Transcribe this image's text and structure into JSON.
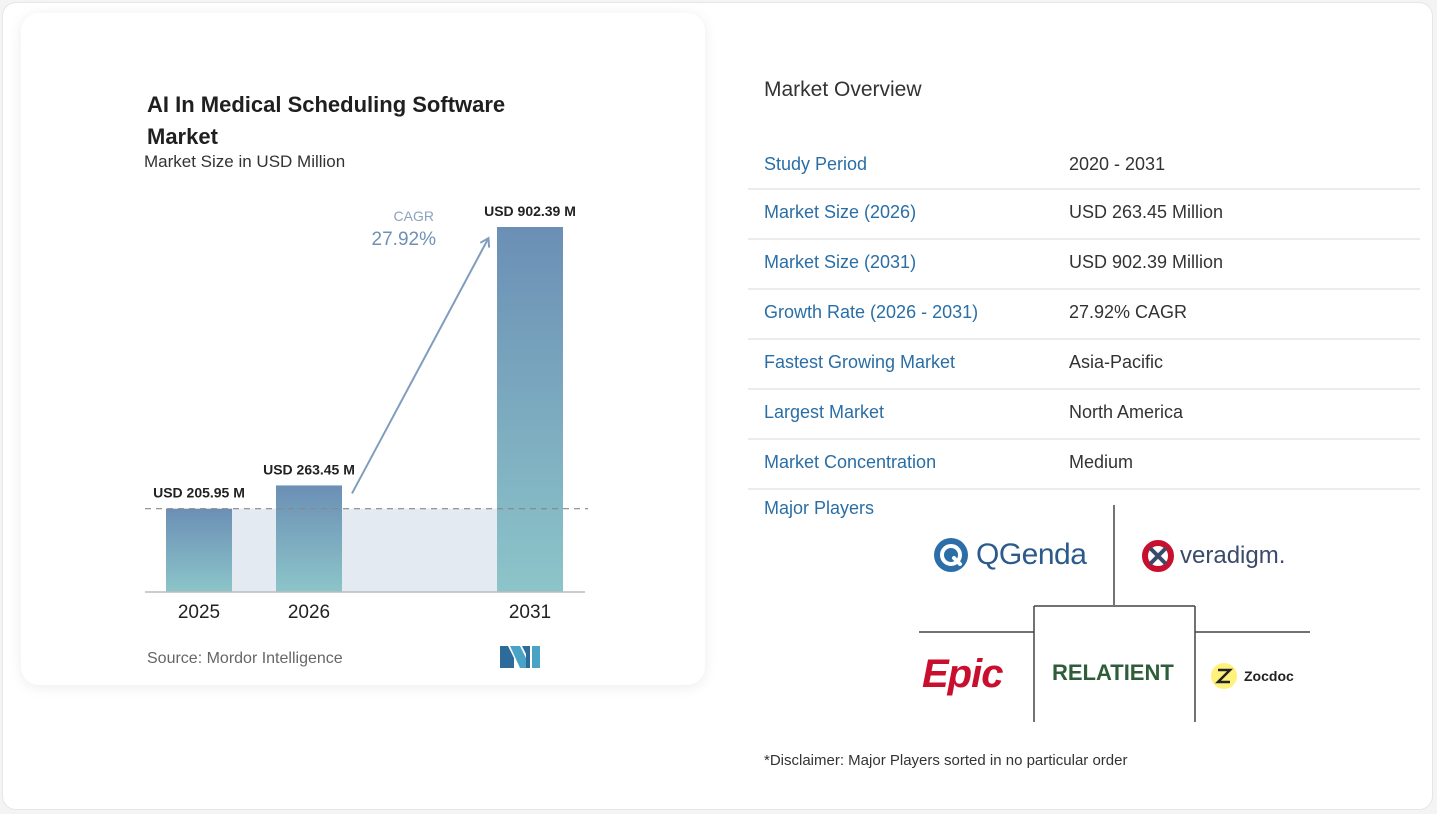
{
  "chart_data": {
    "type": "bar",
    "title": "AI In Medical Scheduling Software Market",
    "subtitle": "Market Size in USD Million",
    "categories": [
      "2025",
      "2026",
      "2031"
    ],
    "values": [
      205.95,
      263.45,
      902.39
    ],
    "data_labels": [
      "USD 205.95 M",
      "USD 263.45 M",
      "USD 902.39 M"
    ],
    "cagr_label": "CAGR",
    "cagr_value": "27.92%",
    "ylim": [
      0,
      902.39
    ],
    "grid": false,
    "legend": "none",
    "bar_color_top": "#6b8fb5",
    "bar_color_bottom": "#8cc5c9",
    "arrow_color": "#7f9dbd",
    "shade_color": "#e4eaf1",
    "source": "Source: Mordor Intelligence"
  },
  "overview": {
    "title": "Market Overview",
    "rows": [
      {
        "label": "Study Period",
        "value": "2020 - 2031"
      },
      {
        "label": "Market Size (2026)",
        "value": "USD 263.45 Million"
      },
      {
        "label": "Market Size (2031)",
        "value": "USD 902.39 Million"
      },
      {
        "label": "Growth Rate (2026 - 2031)",
        "value": "27.92% CAGR"
      },
      {
        "label": "Fastest Growing Market",
        "value": "Asia-Pacific"
      },
      {
        "label": "Largest Market",
        "value": "North America"
      },
      {
        "label": "Market Concentration",
        "value": "Medium"
      }
    ],
    "players_label": "Major Players",
    "players": {
      "qgenda": "QGenda",
      "veradigm": "veradigm.",
      "epic": "Epic",
      "relatient": "RELATIENT",
      "zocdoc": "Zocdoc"
    },
    "disclaimer": "*Disclaimer: Major Players sorted in no particular order"
  },
  "colors": {
    "label_blue": "#2a6ea6",
    "row_divider": "#ececec"
  }
}
